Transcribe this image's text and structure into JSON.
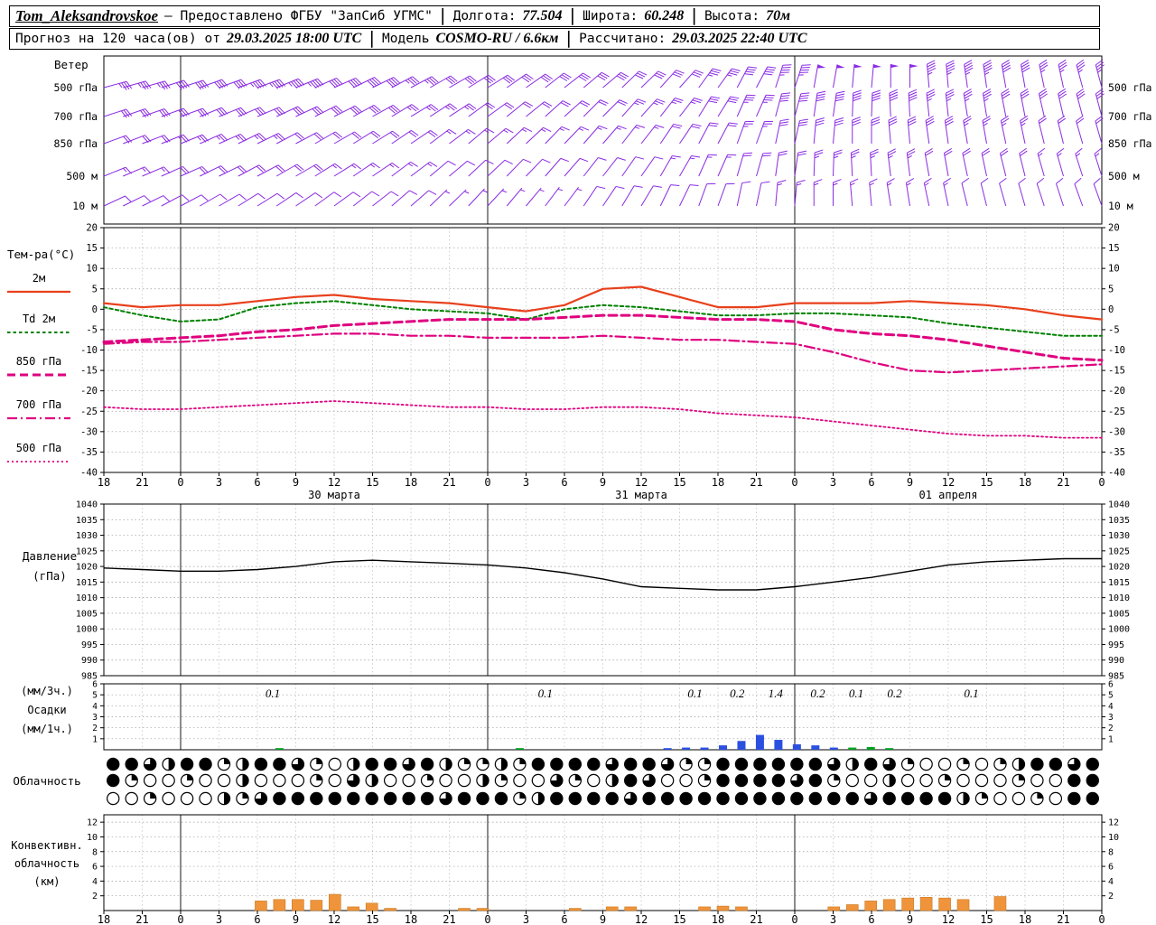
{
  "header": {
    "sep": "|",
    "line1": {
      "station": "Tom_Aleksandrovskoe",
      "provider": "— Предоставлено ФГБУ \"ЗапСиб УГМС\"",
      "lon_label": "Долгота:",
      "lon_value": "77.504",
      "lat_label": "Широта:",
      "lat_value": "60.248",
      "alt_label": "Высота:",
      "alt_value": "70м"
    },
    "line2": {
      "forecast_label": "Прогноз на 120 часа(ов) от",
      "forecast_time": "29.03.2025 18:00 UTC",
      "model_label": "Модель",
      "model_value": "COSMO-RU / 6.6км",
      "calc_label": "Рассчитано:",
      "calc_time": "29.03.2025 22:40 UTC"
    }
  },
  "time_axis": {
    "tick_labels": [
      "18",
      "21",
      "0",
      "3",
      "6",
      "9",
      "12",
      "15",
      "18",
      "21",
      "0",
      "3",
      "6",
      "9",
      "12",
      "15",
      "18",
      "21",
      "0",
      "3",
      "6",
      "9",
      "12",
      "15",
      "18",
      "21",
      "0"
    ],
    "date_labels": [
      {
        "label": "30 марта",
        "index": 6
      },
      {
        "label": "31 марта",
        "index": 14
      },
      {
        "label": "01 апреля",
        "index": 22
      }
    ],
    "midnight_indices": [
      2,
      10,
      18
    ],
    "step_hours": 3
  },
  "chart_data": [
    {
      "id": "wind",
      "type": "wind-barbs",
      "title": "Ветер",
      "color": "#8a2be2",
      "units": "м/с",
      "levels": [
        {
          "label": "500 гПа",
          "speeds": [
            18,
            18,
            20,
            20,
            22,
            22,
            20,
            20,
            18,
            16,
            16,
            15,
            14,
            14,
            15,
            16,
            18,
            20,
            22,
            24,
            25,
            24,
            22,
            22,
            20,
            18,
            18
          ],
          "dirs": [
            75,
            74,
            72,
            70,
            70,
            68,
            66,
            64,
            62,
            60,
            58,
            55,
            52,
            50,
            46,
            42,
            36,
            28,
            18,
            10,
            5,
            0,
            355,
            352,
            350,
            348,
            345
          ]
        },
        {
          "label": "700 гПа",
          "speeds": [
            14,
            15,
            16,
            16,
            16,
            15,
            15,
            14,
            13,
            12,
            11,
            10,
            10,
            10,
            12,
            13,
            15,
            17,
            19,
            20,
            20,
            19,
            18,
            17,
            16,
            15,
            14
          ],
          "dirs": [
            72,
            71,
            70,
            68,
            67,
            65,
            63,
            61,
            59,
            57,
            54,
            51,
            48,
            45,
            42,
            38,
            32,
            24,
            15,
            8,
            2,
            357,
            354,
            351,
            349,
            347,
            345
          ]
        },
        {
          "label": "850 гПа",
          "speeds": [
            10,
            11,
            12,
            12,
            12,
            11,
            11,
            10,
            9,
            8,
            8,
            7,
            7,
            8,
            8,
            9,
            10,
            12,
            14,
            15,
            16,
            15,
            14,
            13,
            12,
            11,
            10
          ],
          "dirs": [
            70,
            69,
            68,
            66,
            64,
            62,
            60,
            58,
            56,
            53,
            50,
            47,
            44,
            41,
            38,
            34,
            28,
            20,
            12,
            5,
            0,
            355,
            352,
            350,
            348,
            346,
            344
          ]
        },
        {
          "label": "500 м",
          "speeds": [
            8,
            8,
            9,
            10,
            10,
            9,
            8,
            8,
            7,
            6,
            6,
            5,
            5,
            6,
            6,
            7,
            8,
            9,
            10,
            12,
            12,
            12,
            11,
            10,
            9,
            8,
            8
          ],
          "dirs": [
            68,
            67,
            66,
            64,
            62,
            60,
            58,
            56,
            53,
            50,
            47,
            44,
            41,
            38,
            35,
            30,
            24,
            16,
            8,
            2,
            357,
            353,
            350,
            348,
            346,
            344,
            342
          ]
        },
        {
          "label": "10 м",
          "speeds": [
            5,
            5,
            6,
            6,
            6,
            5,
            5,
            4,
            4,
            3,
            3,
            3,
            3,
            4,
            4,
            5,
            5,
            6,
            7,
            8,
            8,
            8,
            7,
            6,
            6,
            5,
            5
          ],
          "dirs": [
            65,
            64,
            62,
            60,
            58,
            56,
            54,
            52,
            49,
            46,
            43,
            40,
            37,
            34,
            31,
            26,
            20,
            12,
            5,
            0,
            355,
            351,
            348,
            346,
            344,
            342,
            340
          ]
        }
      ]
    },
    {
      "id": "temperature",
      "type": "line",
      "title": "Тем-ра(°C)",
      "ylim": [
        -40,
        20
      ],
      "ytick_step": 5,
      "series": [
        {
          "name": "2м",
          "color": "#e8401c",
          "style": "solid",
          "width": 2.2,
          "values": [
            1.5,
            0.5,
            1,
            1,
            2,
            3,
            3.5,
            2.5,
            2,
            1.5,
            0.5,
            -0.5,
            1,
            5,
            5.5,
            3,
            0.5,
            0.5,
            1.5,
            1.5,
            1.5,
            2,
            1.5,
            1,
            0,
            -1.5,
            -2.5
          ]
        },
        {
          "name": "Td 2м",
          "color": "#008000",
          "style": "shortdash",
          "width": 2,
          "values": [
            0.5,
            -1.5,
            -3,
            -2.5,
            0.5,
            1.5,
            2,
            1,
            0,
            -0.5,
            -1,
            -2.5,
            0,
            1,
            0.5,
            -0.5,
            -1.5,
            -1.5,
            -1,
            -1,
            -1.5,
            -2,
            -3.5,
            -4.5,
            -5.5,
            -6.5,
            -6.5
          ]
        },
        {
          "name": "850 гПа",
          "color": "#e0007f",
          "style": "dashed",
          "width": 3,
          "values": [
            -8,
            -7.5,
            -7,
            -6.5,
            -5.5,
            -5,
            -4,
            -3.5,
            -3,
            -2.5,
            -2.5,
            -2.5,
            -2,
            -1.5,
            -1.5,
            -2,
            -2.5,
            -2.5,
            -3,
            -5,
            -6,
            -6.5,
            -7.5,
            -9,
            -10.5,
            -12,
            -12.5
          ]
        },
        {
          "name": "700 гПа",
          "color": "#e0007f",
          "style": "dashdot",
          "width": 2.2,
          "values": [
            -8.5,
            -8,
            -8,
            -7.5,
            -7,
            -6.5,
            -6,
            -6,
            -6.5,
            -6.5,
            -7,
            -7,
            -7,
            -6.5,
            -7,
            -7.5,
            -7.5,
            -8,
            -8.5,
            -10.5,
            -13,
            -15,
            -15.5,
            -15,
            -14.5,
            -14,
            -13.5
          ]
        },
        {
          "name": "500 гПа",
          "color": "#e0007f",
          "style": "dotted",
          "width": 1.8,
          "values": [
            -24,
            -24.5,
            -24.5,
            -24,
            -23.5,
            -23,
            -22.5,
            -23,
            -23.5,
            -24,
            -24,
            -24.5,
            -24.5,
            -24,
            -24,
            -24.5,
            -25.5,
            -26,
            -26.5,
            -27.5,
            -28.5,
            -29.5,
            -30.5,
            -31,
            -31,
            -31.5,
            -31.5
          ]
        }
      ]
    },
    {
      "id": "pressure",
      "type": "line",
      "label_lines": [
        "Давление",
        "(гПа)"
      ],
      "ylim": [
        985,
        1040
      ],
      "ytick_step": 5,
      "series": [
        {
          "name": "давление",
          "color": "#000000",
          "style": "solid",
          "width": 1.4,
          "values": [
            1019.5,
            1019,
            1018.5,
            1018.5,
            1019,
            1020,
            1021.5,
            1022,
            1021.5,
            1021,
            1020.5,
            1019.5,
            1018,
            1016,
            1013.5,
            1013,
            1012.5,
            1012.5,
            1013.5,
            1015,
            1016.5,
            1018.5,
            1020.5,
            1021.5,
            1022,
            1022.5,
            1022.5
          ]
        }
      ]
    },
    {
      "id": "precipitation",
      "type": "bar",
      "label_lines": [
        "(мм/3ч.)",
        "Осадки",
        "(мм/1ч.)"
      ],
      "ylim": [
        0,
        6
      ],
      "rain_color": "#00a020",
      "snow_color": "#2b50e0",
      "rain": [
        0,
        0,
        0,
        0,
        0,
        0,
        0,
        0,
        0,
        0.15,
        0,
        0,
        0,
        0,
        0,
        0,
        0,
        0,
        0,
        0,
        0,
        0,
        0.15,
        0,
        0,
        0,
        0,
        0,
        0,
        0,
        0,
        0,
        0,
        0,
        0,
        0,
        0,
        0,
        0,
        0,
        0.2,
        0.25,
        0.15,
        0,
        0,
        0,
        0,
        0,
        0,
        0,
        0,
        0,
        0,
        0
      ],
      "snow": [
        0,
        0,
        0,
        0,
        0,
        0,
        0,
        0,
        0,
        0,
        0,
        0,
        0,
        0,
        0,
        0,
        0,
        0,
        0,
        0,
        0,
        0,
        0,
        0,
        0,
        0,
        0,
        0,
        0,
        0,
        0.15,
        0.2,
        0.2,
        0.4,
        0.8,
        1.35,
        0.9,
        0.5,
        0.4,
        0.2,
        0,
        0,
        0,
        0,
        0,
        0,
        0,
        0,
        0,
        0,
        0,
        0,
        0,
        0
      ],
      "amount_labels": [
        {
          "t": 4.4,
          "v": "0.1"
        },
        {
          "t": 11.5,
          "v": "0.1"
        },
        {
          "t": 15.4,
          "v": "0.1"
        },
        {
          "t": 16.5,
          "v": "0.2"
        },
        {
          "t": 17.5,
          "v": "1.4"
        },
        {
          "t": 18.6,
          "v": "0.2"
        },
        {
          "t": 19.6,
          "v": "0.1"
        },
        {
          "t": 20.6,
          "v": "0.2"
        },
        {
          "t": 22.6,
          "v": "0.1"
        }
      ]
    },
    {
      "id": "cloudiness",
      "type": "cloud-symbols",
      "title": "Облачность",
      "max_octa": 8,
      "rows": [
        [
          8,
          8,
          6,
          4,
          8,
          8,
          2,
          4,
          8,
          8,
          6,
          2,
          0,
          4,
          8,
          8,
          6,
          8,
          4,
          2,
          2,
          4,
          2,
          8,
          8,
          8,
          8,
          6,
          8,
          8,
          6,
          2,
          2,
          8,
          8,
          8,
          8,
          8,
          8,
          6,
          4,
          8,
          6,
          2,
          0,
          0,
          2,
          0,
          2,
          4,
          8,
          8,
          6,
          8
        ],
        [
          8,
          2,
          0,
          0,
          2,
          0,
          0,
          4,
          0,
          0,
          0,
          2,
          0,
          6,
          4,
          0,
          0,
          2,
          0,
          0,
          4,
          2,
          0,
          0,
          6,
          2,
          0,
          4,
          8,
          6,
          0,
          0,
          2,
          8,
          8,
          8,
          8,
          6,
          8,
          2,
          0,
          0,
          4,
          0,
          0,
          2,
          0,
          0,
          0,
          2,
          0,
          0,
          8,
          8
        ],
        [
          0,
          0,
          2,
          0,
          0,
          0,
          4,
          2,
          6,
          8,
          8,
          8,
          8,
          8,
          8,
          8,
          8,
          8,
          6,
          8,
          8,
          8,
          2,
          4,
          8,
          8,
          8,
          8,
          6,
          8,
          8,
          8,
          8,
          8,
          8,
          8,
          8,
          8,
          8,
          8,
          8,
          6,
          8,
          8,
          8,
          8,
          4,
          2,
          0,
          0,
          2,
          0,
          8,
          8
        ]
      ]
    },
    {
      "id": "convective",
      "type": "bar",
      "label_lines": [
        "Конвективн.",
        "облачность",
        "(км)"
      ],
      "ylim": [
        0,
        13
      ],
      "ytick_step": 2,
      "color": "#f0943c",
      "edge_color": "#c8781e",
      "values": [
        0,
        0,
        0,
        0,
        0,
        0,
        0,
        0,
        1.3,
        1.5,
        1.5,
        1.4,
        2.2,
        0.5,
        1,
        0.3,
        0,
        0,
        0,
        0.3,
        0.3,
        0,
        0,
        0,
        0,
        0.3,
        0,
        0.5,
        0.5,
        0,
        0,
        0,
        0.5,
        0.6,
        0.5,
        0,
        0,
        0,
        0,
        0.5,
        0.8,
        1.3,
        1.5,
        1.7,
        1.8,
        1.7,
        1.5,
        0,
        1.9,
        0,
        0,
        0,
        0,
        0
      ]
    }
  ]
}
